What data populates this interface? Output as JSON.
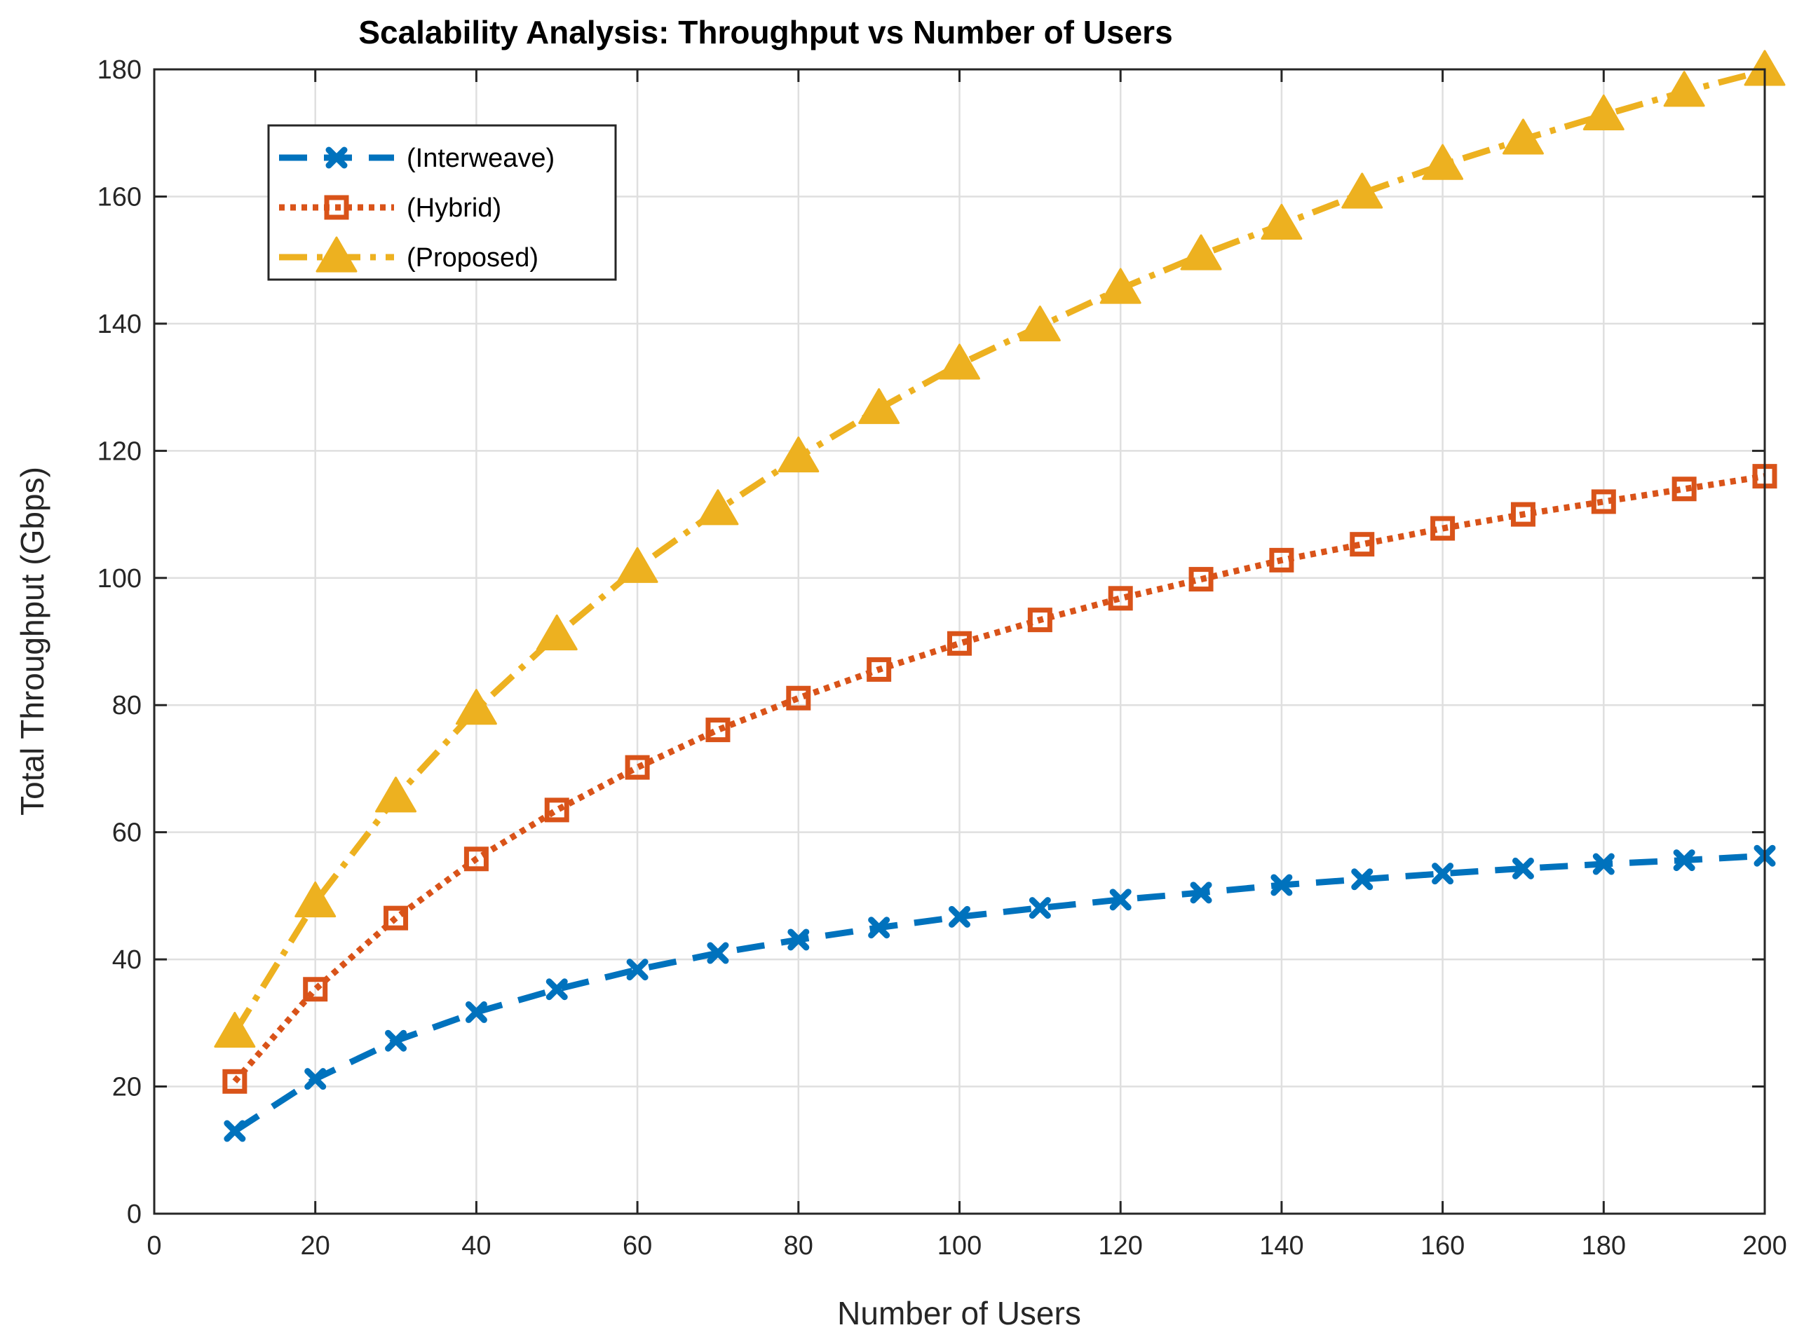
{
  "chart_data": {
    "type": "line",
    "title": "Scalability Analysis: Throughput vs Number of Users",
    "xlabel": "Number of Users",
    "ylabel": "Total Throughput (Gbps)",
    "xlim": [
      0,
      200
    ],
    "ylim": [
      0,
      180
    ],
    "xticks": [
      0,
      20,
      40,
      60,
      80,
      100,
      120,
      140,
      160,
      180,
      200
    ],
    "yticks": [
      0,
      20,
      40,
      60,
      80,
      100,
      120,
      140,
      160,
      180
    ],
    "grid": true,
    "legend_position": "top-left",
    "x": [
      10,
      20,
      30,
      40,
      50,
      60,
      70,
      80,
      90,
      100,
      110,
      120,
      130,
      140,
      150,
      160,
      170,
      180,
      190,
      200
    ],
    "series": [
      {
        "name": "(Interweave)",
        "color": "#0072BD",
        "line_style": "dashed",
        "marker": "x",
        "values": [
          13,
          21.2,
          27.2,
          31.7,
          35.3,
          38.4,
          41,
          43.1,
          45,
          46.7,
          48.1,
          49.4,
          50.5,
          51.7,
          52.6,
          53.5,
          54.3,
          55,
          55.6,
          56.3
        ]
      },
      {
        "name": "(Hybrid)",
        "color": "#D95319",
        "line_style": "dotted",
        "marker": "square",
        "values": [
          20.8,
          35.3,
          46.5,
          55.8,
          63.5,
          70.2,
          76.1,
          81.1,
          85.6,
          89.7,
          93.4,
          96.8,
          99.8,
          102.8,
          105.3,
          107.8,
          110,
          112,
          114,
          116
        ]
      },
      {
        "name": "(Proposed)",
        "color": "#EDB120",
        "line_style": "dashdot",
        "marker": "triangle",
        "values": [
          28.5,
          49,
          65.5,
          79.3,
          91,
          101.6,
          110.7,
          119,
          126.6,
          133.6,
          139.6,
          145.5,
          150.8,
          155.6,
          160.5,
          165,
          169,
          172.8,
          176.5,
          179.8
        ]
      }
    ]
  }
}
